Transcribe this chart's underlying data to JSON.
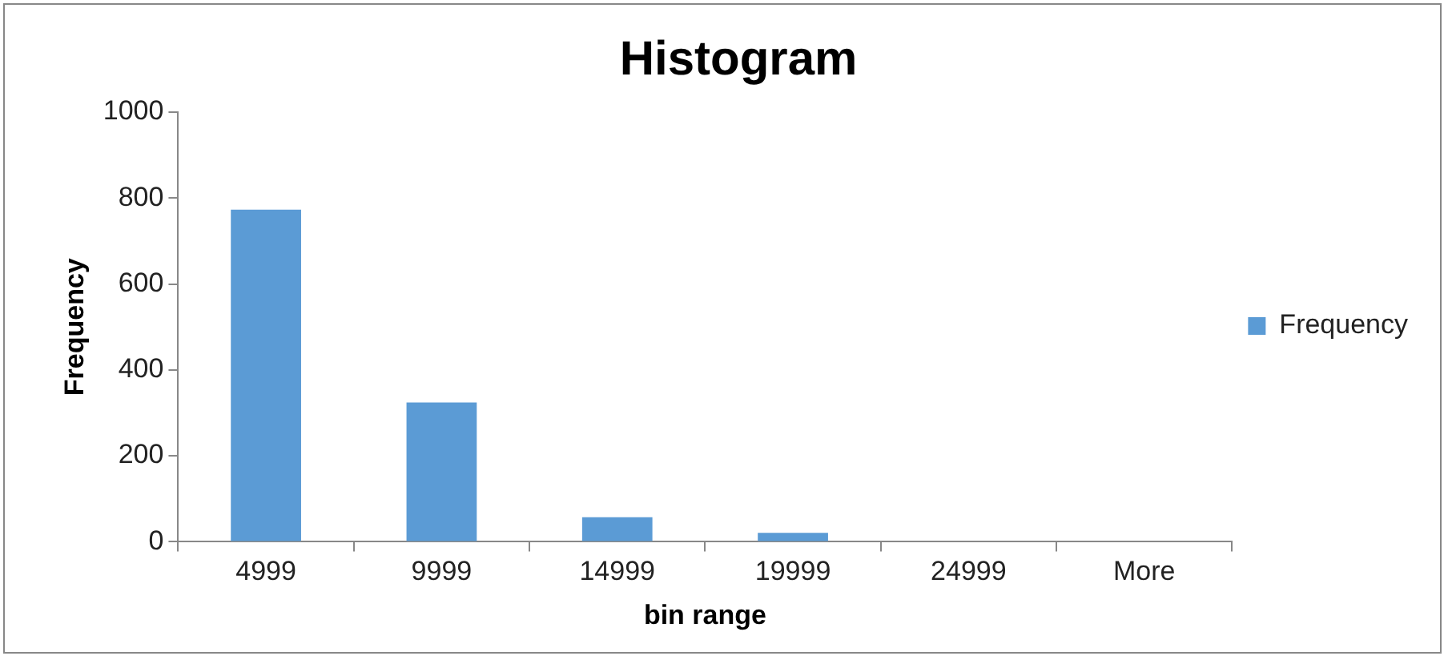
{
  "chart_data": {
    "type": "bar",
    "title": "Histogram",
    "xlabel": "bin range",
    "ylabel": "Frequency",
    "categories": [
      "4999",
      "9999",
      "14999",
      "19999",
      "24999",
      "More"
    ],
    "series": [
      {
        "name": "Frequency",
        "color": "#5b9bd5",
        "values": [
          773,
          324,
          57,
          21,
          0,
          0
        ]
      }
    ],
    "ylim": [
      0,
      1000
    ],
    "yticks": [
      0,
      200,
      400,
      600,
      800,
      1000
    ],
    "grid": false,
    "legend": "right"
  }
}
